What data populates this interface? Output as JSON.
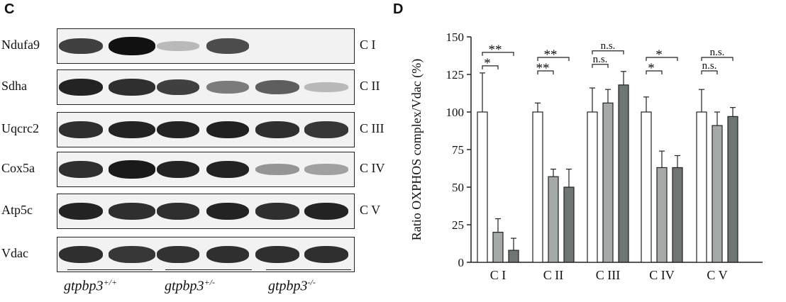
{
  "panel_c": {
    "letter": "C",
    "blots": [
      {
        "protein": "Ndufa9",
        "complex": "C I",
        "intensity": [
          0.75,
          1.0,
          0.12,
          0.7,
          0.0,
          0.0
        ]
      },
      {
        "protein": "Sdha",
        "complex": "C II",
        "intensity": [
          0.9,
          0.85,
          0.75,
          0.45,
          0.6,
          0.12
        ]
      },
      {
        "protein": "Uqcrc2",
        "complex": "C III",
        "intensity": [
          0.85,
          0.9,
          0.9,
          0.92,
          0.85,
          0.8
        ]
      },
      {
        "protein": "Cox5a",
        "complex": "C IV",
        "intensity": [
          0.85,
          0.95,
          0.9,
          0.9,
          0.3,
          0.25
        ]
      },
      {
        "protein": "Atp5c",
        "complex": "C V",
        "intensity": [
          0.9,
          0.85,
          0.85,
          0.9,
          0.85,
          0.9
        ]
      },
      {
        "protein": "Vdac",
        "complex": "",
        "intensity": [
          0.85,
          0.8,
          0.82,
          0.85,
          0.85,
          0.85
        ]
      }
    ],
    "genotypes": [
      {
        "base": "gtpbp3",
        "sup": "+/+"
      },
      {
        "base": "gtpbp3",
        "sup": "+/-"
      },
      {
        "base": "gtpbp3",
        "sup": "-/-"
      }
    ]
  },
  "chart_data": {
    "panel_letter": "D",
    "type": "bar",
    "categories": [
      "C I",
      "C II",
      "C III",
      "C IV",
      "C V"
    ],
    "series": [
      {
        "values": [
          100,
          100,
          100,
          100,
          100
        ],
        "errors": [
          26,
          6,
          16,
          10,
          15
        ],
        "color": "#ffffff"
      },
      {
        "values": [
          20,
          57,
          106,
          63,
          91
        ],
        "errors": [
          9,
          5,
          9,
          11,
          9
        ],
        "color": "#a5aaa8"
      },
      {
        "values": [
          8,
          50,
          118,
          63,
          97
        ],
        "errors": [
          8,
          12,
          9,
          8,
          6
        ],
        "color": "#6f7573"
      }
    ],
    "ylabel": "Ratio OXPHOS complex/Vdac (%)",
    "ylim": [
      0,
      150
    ],
    "yticks": [
      "0",
      "25",
      "50",
      "75",
      "100",
      "125",
      "150"
    ],
    "grid": false,
    "legend": "none",
    "significance": [
      {
        "category": 0,
        "pair": "inner",
        "label": "*"
      },
      {
        "category": 0,
        "pair": "outer",
        "label": "**"
      },
      {
        "category": 1,
        "pair": "inner",
        "label": "**"
      },
      {
        "category": 1,
        "pair": "outer",
        "label": "**"
      },
      {
        "category": 2,
        "pair": "inner",
        "label": "n.s."
      },
      {
        "category": 2,
        "pair": "outer",
        "label": "n.s."
      },
      {
        "category": 3,
        "pair": "inner",
        "label": "*"
      },
      {
        "category": 3,
        "pair": "outer",
        "label": "*"
      },
      {
        "category": 4,
        "pair": "inner",
        "label": "n.s."
      },
      {
        "category": 4,
        "pair": "outer",
        "label": "n.s."
      }
    ]
  }
}
